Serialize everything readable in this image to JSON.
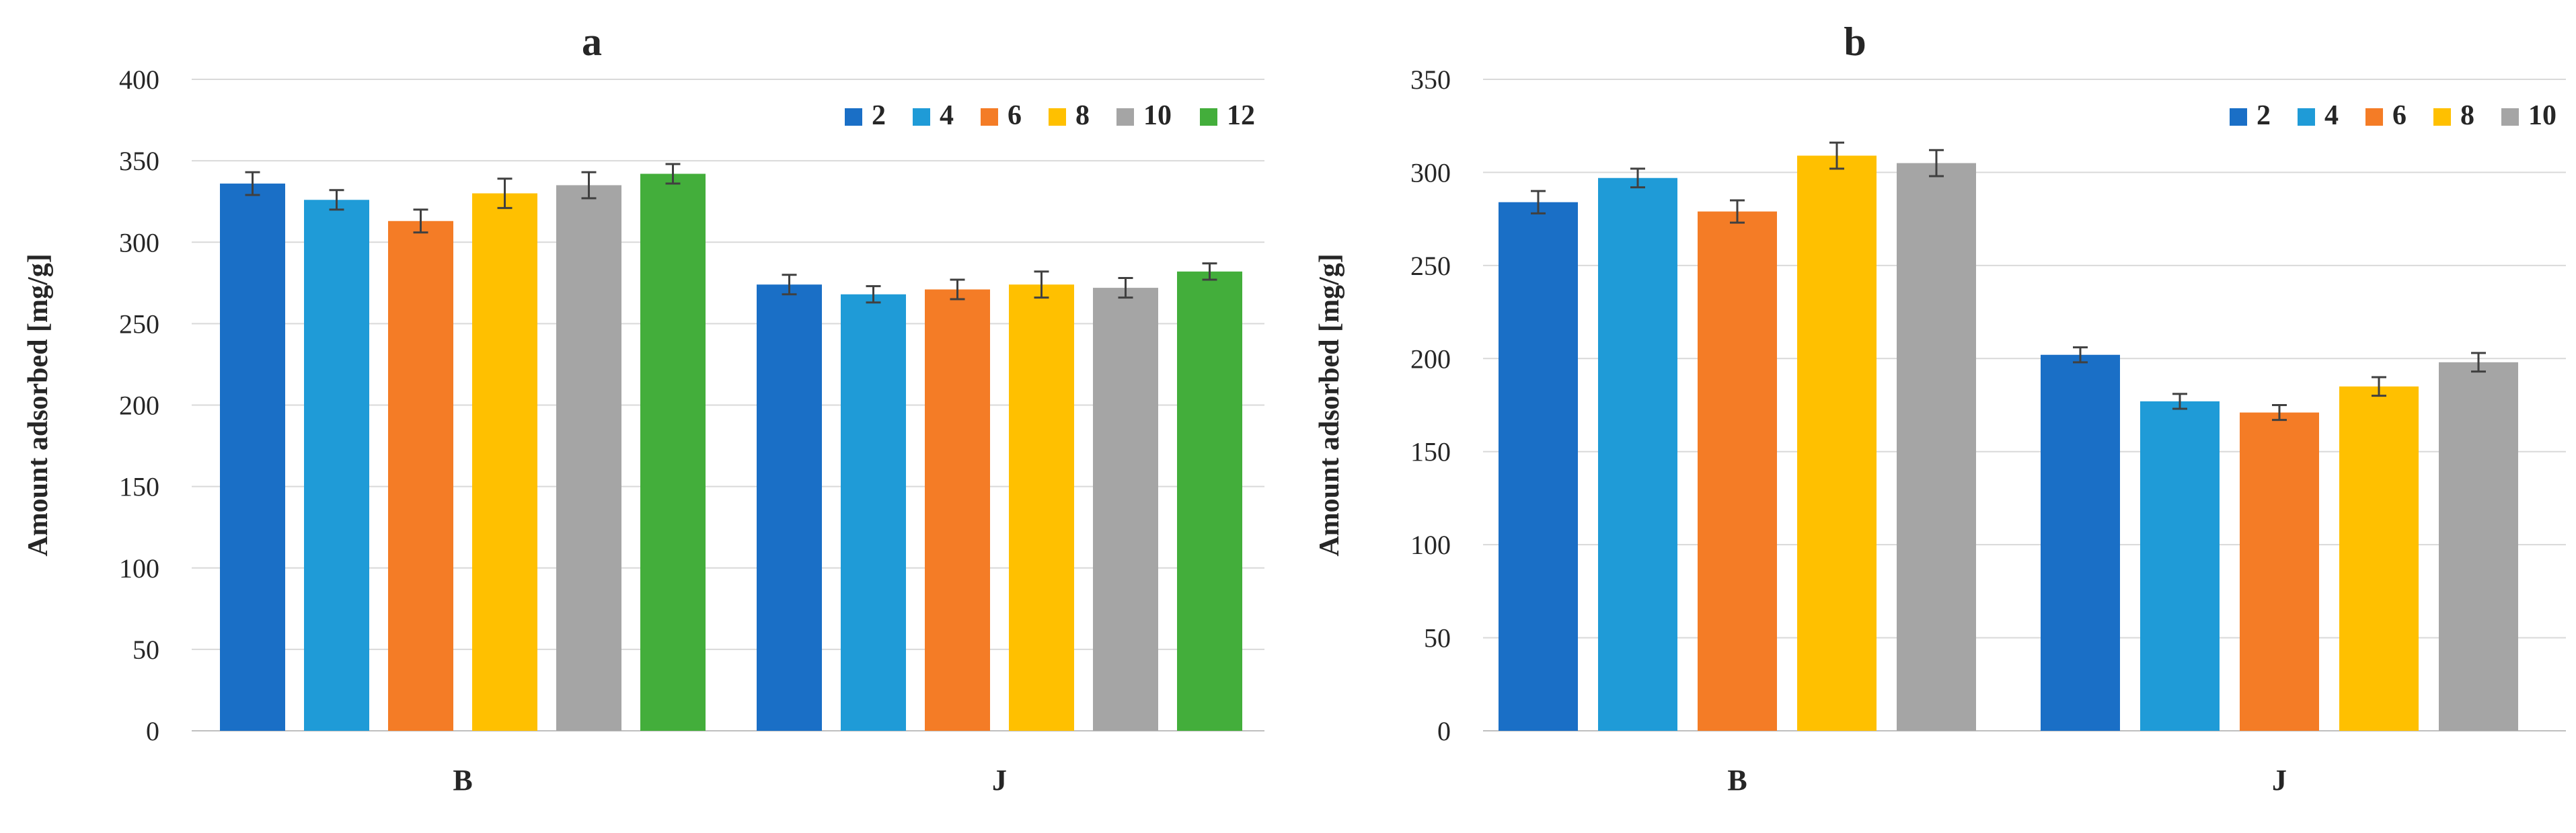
{
  "chart_data": [
    {
      "type": "bar",
      "title": "a",
      "ylabel": "Amount adsorbed [mg/g]",
      "xlabel": "",
      "ylim": [
        0,
        400
      ],
      "ytick_step": 50,
      "yticks": [
        "0",
        "50",
        "100",
        "150",
        "200",
        "250",
        "300",
        "350",
        "400"
      ],
      "grid": true,
      "legend_position": "top-right",
      "categories": [
        "B",
        "J"
      ],
      "series": [
        {
          "name": "2",
          "color": "#1a6fc6",
          "values": [
            336,
            274
          ],
          "errors": [
            7,
            6
          ]
        },
        {
          "name": "4",
          "color": "#1f9bd7",
          "values": [
            326,
            268
          ],
          "errors": [
            6,
            5
          ]
        },
        {
          "name": "6",
          "color": "#f47c26",
          "values": [
            313,
            271
          ],
          "errors": [
            7,
            6
          ]
        },
        {
          "name": "8",
          "color": "#ffc000",
          "values": [
            330,
            274
          ],
          "errors": [
            9,
            8
          ]
        },
        {
          "name": "10",
          "color": "#a5a5a5",
          "values": [
            335,
            272
          ],
          "errors": [
            8,
            6
          ]
        },
        {
          "name": "12",
          "color": "#43ae3b",
          "values": [
            342,
            282
          ],
          "errors": [
            6,
            5
          ]
        }
      ]
    },
    {
      "type": "bar",
      "title": "b",
      "ylabel": "Amount adsorbed [mg/g]",
      "xlabel": "",
      "ylim": [
        0,
        350
      ],
      "ytick_step": 50,
      "yticks": [
        "0",
        "50",
        "100",
        "150",
        "200",
        "250",
        "300",
        "350"
      ],
      "grid": true,
      "legend_position": "top-right",
      "categories": [
        "B",
        "J"
      ],
      "series": [
        {
          "name": "2",
          "color": "#1a6fc6",
          "values": [
            284,
            202
          ],
          "errors": [
            6,
            4
          ]
        },
        {
          "name": "4",
          "color": "#1f9bd7",
          "values": [
            297,
            177
          ],
          "errors": [
            5,
            4
          ]
        },
        {
          "name": "6",
          "color": "#f47c26",
          "values": [
            279,
            171
          ],
          "errors": [
            6,
            4
          ]
        },
        {
          "name": "8",
          "color": "#ffc000",
          "values": [
            309,
            185
          ],
          "errors": [
            7,
            5
          ]
        },
        {
          "name": "10",
          "color": "#a5a5a5",
          "values": [
            305,
            198
          ],
          "errors": [
            7,
            5
          ]
        }
      ]
    }
  ]
}
